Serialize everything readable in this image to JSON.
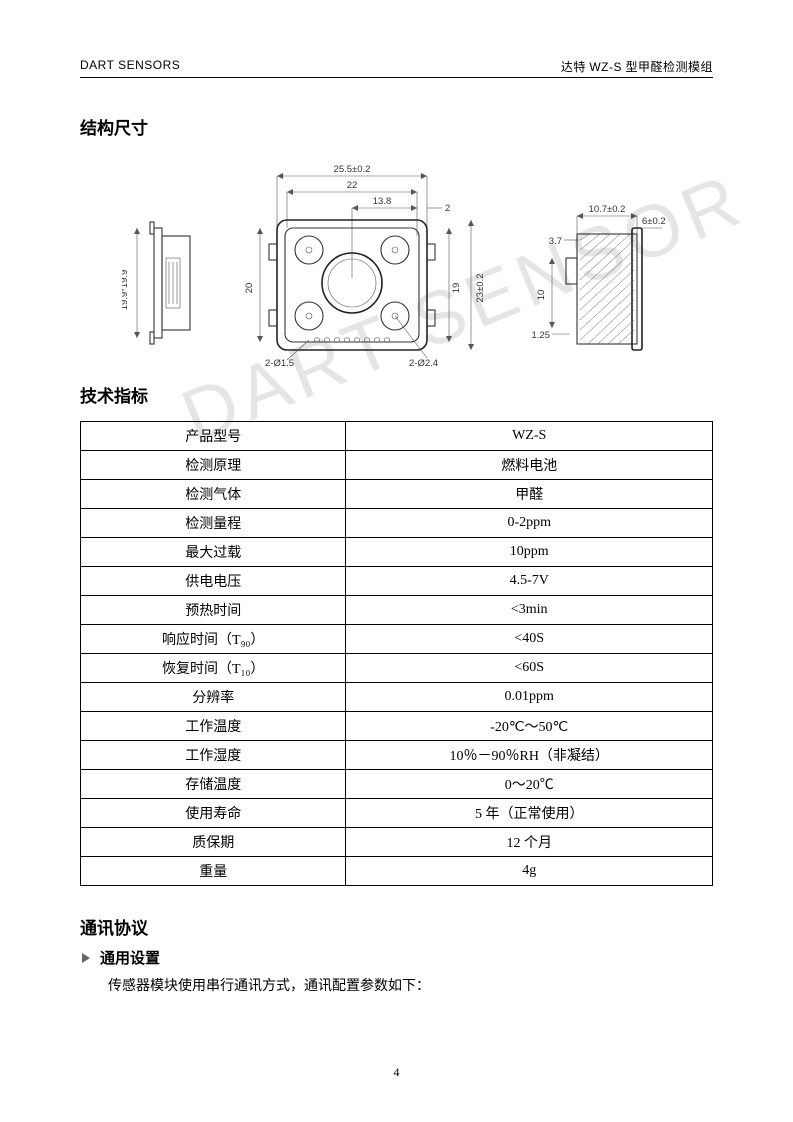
{
  "header": {
    "left": "DART SENSORS",
    "right_prefix": "达特 ",
    "right_model": "WZ-S",
    "right_suffix": " 型甲醛检测模组"
  },
  "sections": {
    "dimensions_title": "结构尺寸",
    "specs_title": "技术指标",
    "protocol_title": "通讯协议",
    "general_settings": "通用设置",
    "protocol_text": "传感器模块使用串行通讯方式，通讯配置参数如下："
  },
  "drawing": {
    "side_view": {
      "height_label": "19.9*19.9"
    },
    "top_view": {
      "dim_outer": "25.5±0.2",
      "dim_bolt": "22",
      "dim_half": "13.8",
      "dim_edge": "2",
      "dim_v_clear": "20",
      "dim_v_inner": "19",
      "dim_v_outer": "23±0.2",
      "hole_small": "2-Ø1.5",
      "hole_big": "2-Ø2.4"
    },
    "front_view": {
      "dim_top": "10.7±0.2",
      "dim_top_edge": "6±0.2",
      "dim_notch": "3.7",
      "dim_ht": "10",
      "dim_base": "1.25"
    }
  },
  "specs": [
    {
      "label": "产品型号",
      "value": "WZ-S"
    },
    {
      "label": "检测原理",
      "value": "燃料电池"
    },
    {
      "label": "检测气体",
      "value": "甲醛"
    },
    {
      "label": "检测量程",
      "value": "0-2ppm"
    },
    {
      "label": "最大过载",
      "value": "10ppm"
    },
    {
      "label": "供电电压",
      "value": "4.5-7V"
    },
    {
      "label": "预热时间",
      "value": "<3min"
    },
    {
      "label": "响应时间（T₉₀）",
      "value": "<40S"
    },
    {
      "label": "恢复时间（T₁₀）",
      "value": "<60S"
    },
    {
      "label": "分辨率",
      "value": "0.01ppm"
    },
    {
      "label": "工作温度",
      "value": "-20℃～50℃"
    },
    {
      "label": "工作湿度",
      "value": "10％－90％RH（非凝结）"
    },
    {
      "label": "存储温度",
      "value": "0～20℃"
    },
    {
      "label": "使用寿命",
      "value": "5 年（正常使用）"
    },
    {
      "label": "质保期",
      "value": "12 个月"
    },
    {
      "label": "重量",
      "value": "4g"
    }
  ],
  "watermark": "DART SENSOR",
  "page_number": "4"
}
